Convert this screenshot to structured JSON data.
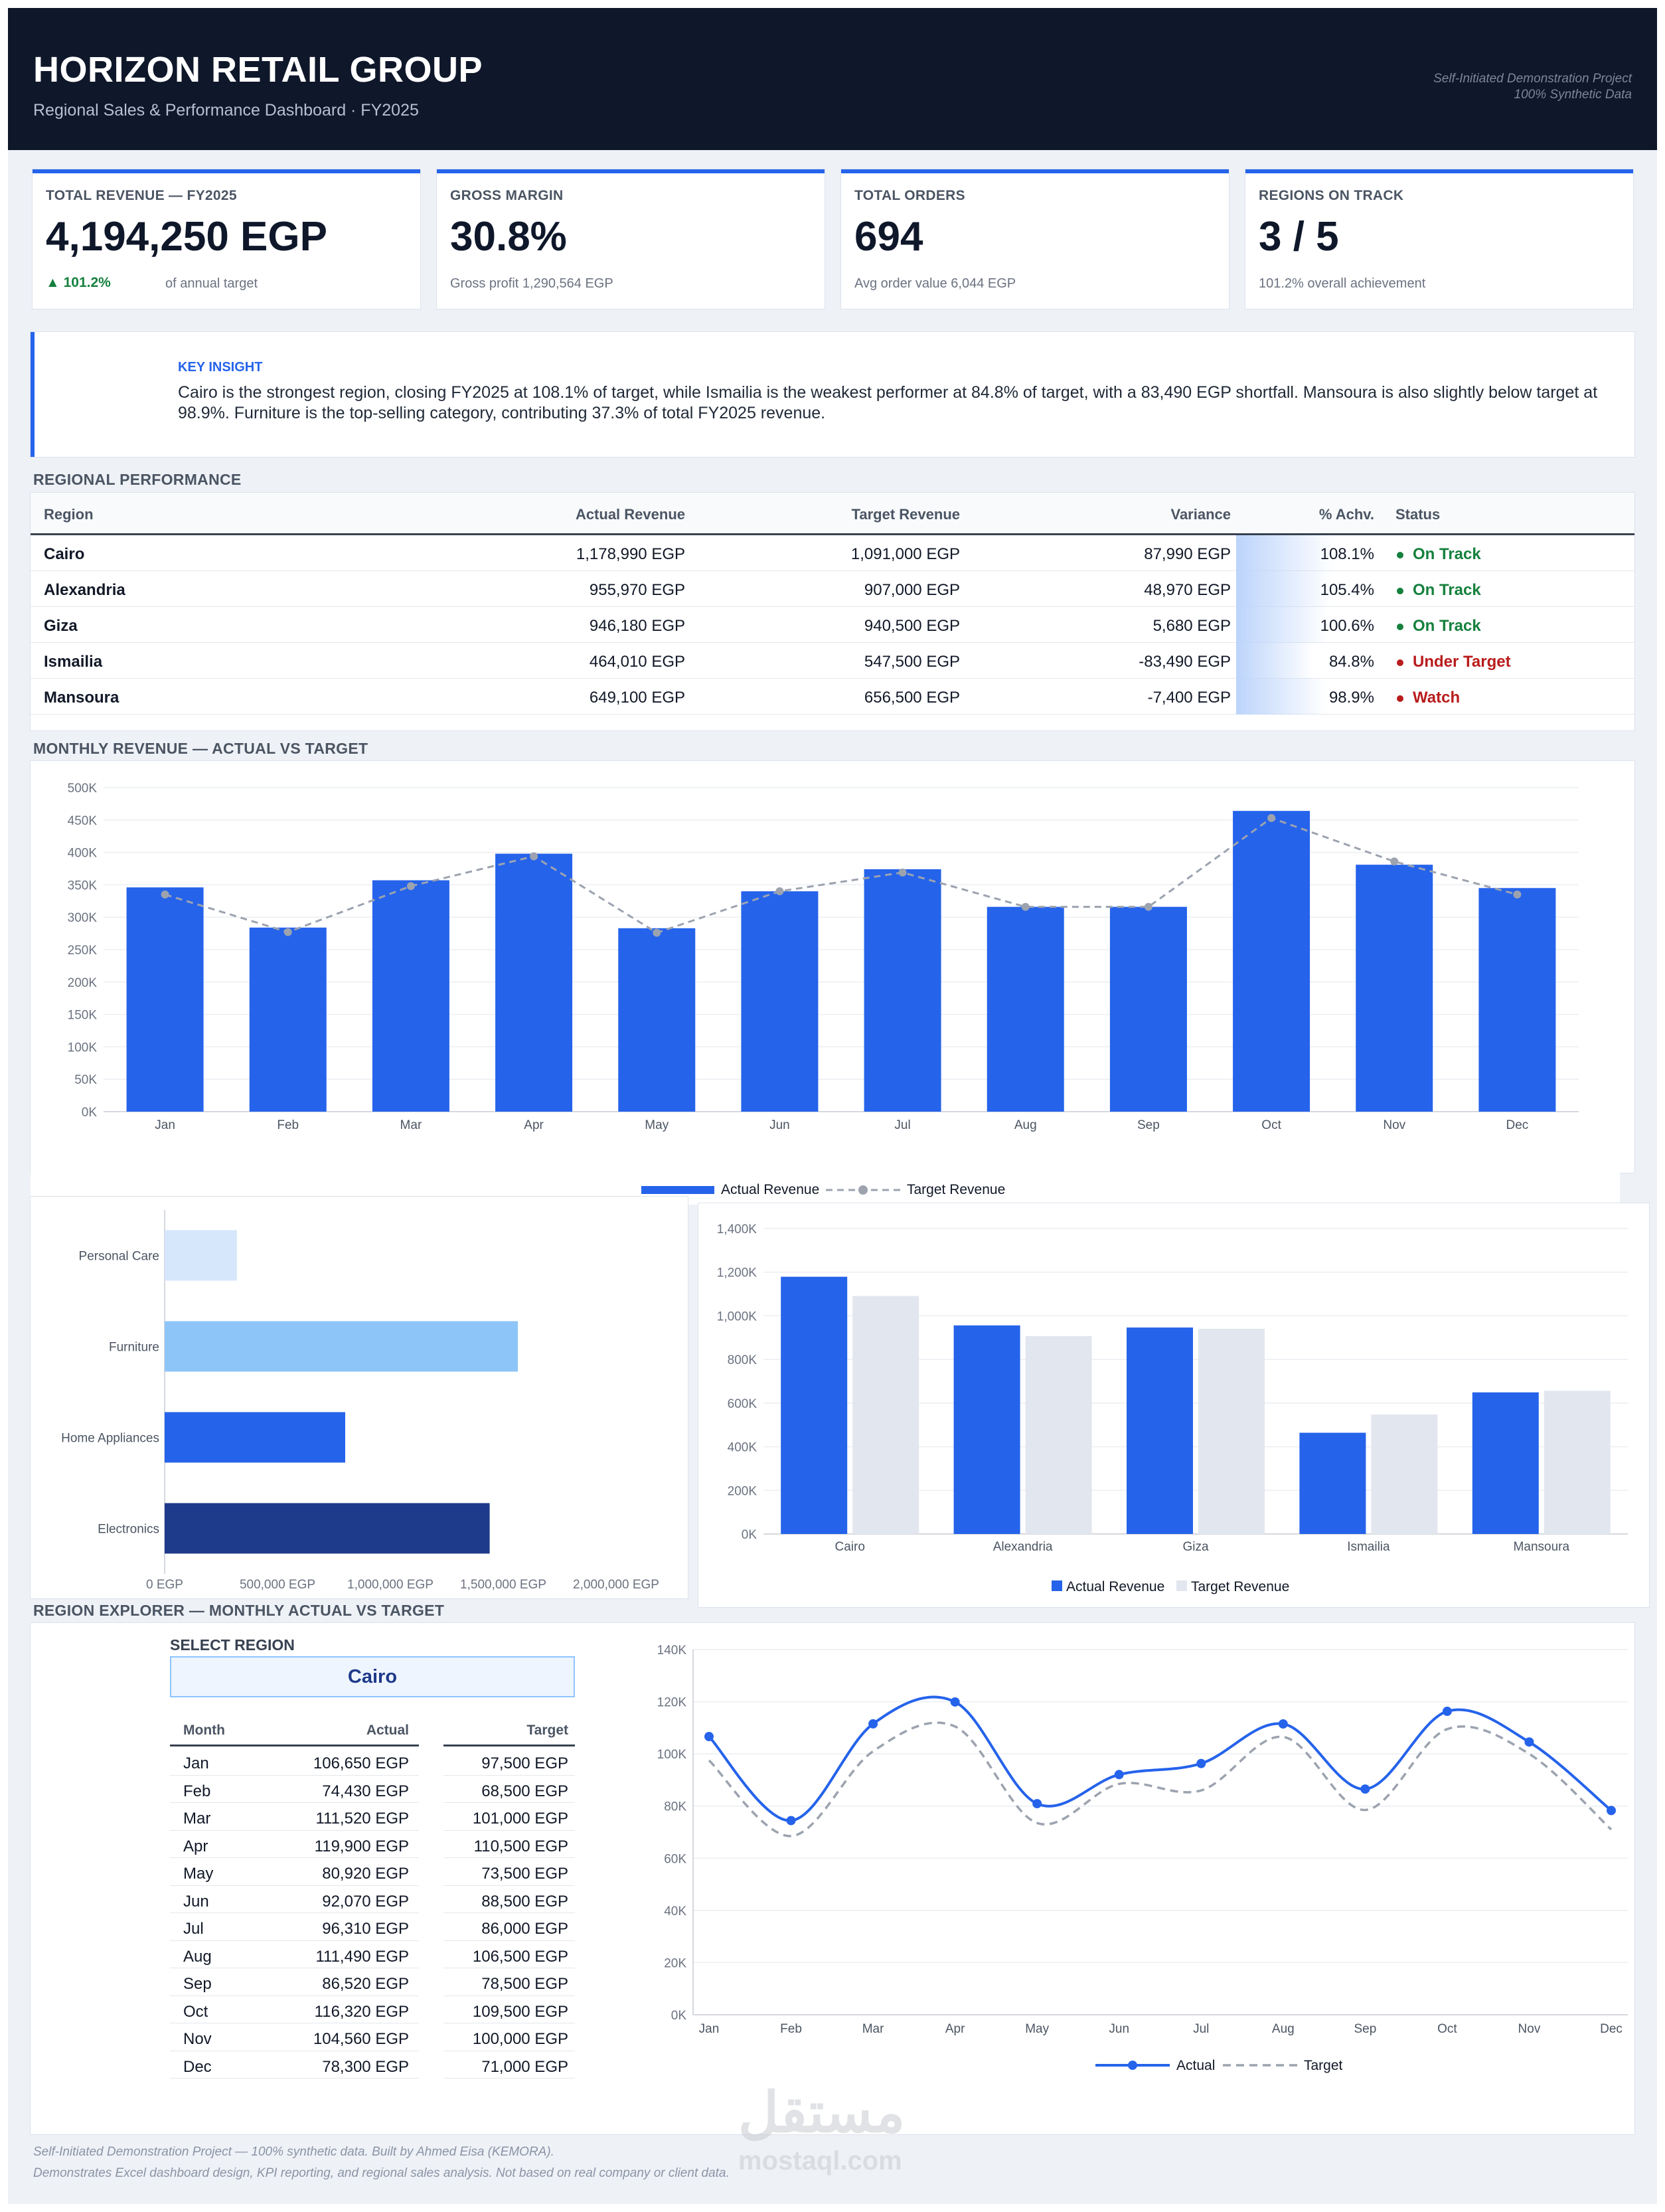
{
  "header": {
    "title": "HORIZON RETAIL GROUP",
    "subtitle": "Regional Sales & Performance Dashboard  ·  FY2025",
    "note_line1": "Self-Initiated Demonstration Project",
    "note_line2": "100% Synthetic Data"
  },
  "kpis": [
    {
      "label": "TOTAL REVENUE — FY2025",
      "value": "4,194,250 EGP",
      "delta": "▲ 101.2%",
      "sub": "of annual target"
    },
    {
      "label": "GROSS MARGIN",
      "value": "30.8%",
      "sub": "Gross profit 1,290,564 EGP"
    },
    {
      "label": "TOTAL ORDERS",
      "value": "694",
      "sub": "Avg order value 6,044 EGP"
    },
    {
      "label": "REGIONS ON TRACK",
      "value": "3 / 5",
      "sub": "101.2% overall achievement"
    }
  ],
  "insight": {
    "label": "KEY INSIGHT",
    "text": "Cairo is the strongest region, closing FY2025 at 108.1% of target, while Ismailia is the weakest performer at 84.8% of target, with a 83,490 EGP shortfall.  Mansoura is also slightly below target at 98.9%.  Furniture is the top-selling category, contributing 37.3% of total FY2025 revenue."
  },
  "regional": {
    "title": "REGIONAL PERFORMANCE",
    "headers": [
      "Region",
      "Actual Revenue",
      "Target Revenue",
      "Variance",
      "% Achv.",
      "Status"
    ],
    "rows": [
      {
        "region": "Cairo",
        "actual": "1,178,990 EGP",
        "target": "1,091,000 EGP",
        "variance": "87,990 EGP",
        "achv": "108.1%",
        "achv_value": 108.1,
        "status": "On Track",
        "status_color": "#15803d"
      },
      {
        "region": "Alexandria",
        "actual": "955,970 EGP",
        "target": "907,000 EGP",
        "variance": "48,970 EGP",
        "achv": "105.4%",
        "achv_value": 105.4,
        "status": "On Track",
        "status_color": "#15803d"
      },
      {
        "region": "Giza",
        "actual": "946,180 EGP",
        "target": "940,500 EGP",
        "variance": "5,680 EGP",
        "achv": "100.6%",
        "achv_value": 100.6,
        "status": "On Track",
        "status_color": "#15803d"
      },
      {
        "region": "Ismailia",
        "actual": "464,010 EGP",
        "target": "547,500 EGP",
        "variance": "-83,490 EGP",
        "achv": "84.8%",
        "achv_value": 84.8,
        "status": "Under Target",
        "status_color": "#b91c1c"
      },
      {
        "region": "Mansoura",
        "actual": "649,100 EGP",
        "target": "656,500 EGP",
        "variance": "-7,400 EGP",
        "achv": "98.9%",
        "achv_value": 98.9,
        "status": "Watch",
        "status_color": "#b91c1c"
      }
    ]
  },
  "monthly_title": "MONTHLY REVENUE — ACTUAL VS TARGET",
  "explorer": {
    "title": "REGION EXPLORER — MONTHLY ACTUAL VS TARGET",
    "select_label": "SELECT REGION",
    "selected": "Cairo",
    "headers": [
      "Month",
      "Actual",
      "Target"
    ],
    "rows": [
      [
        "Jan",
        "106,650 EGP",
        "97,500 EGP"
      ],
      [
        "Feb",
        "74,430 EGP",
        "68,500 EGP"
      ],
      [
        "Mar",
        "111,520 EGP",
        "101,000 EGP"
      ],
      [
        "Apr",
        "119,900 EGP",
        "110,500 EGP"
      ],
      [
        "May",
        "80,920 EGP",
        "73,500 EGP"
      ],
      [
        "Jun",
        "92,070 EGP",
        "88,500 EGP"
      ],
      [
        "Jul",
        "96,310 EGP",
        "86,000 EGP"
      ],
      [
        "Aug",
        "111,490 EGP",
        "106,500 EGP"
      ],
      [
        "Sep",
        "86,520 EGP",
        "78,500 EGP"
      ],
      [
        "Oct",
        "116,320 EGP",
        "109,500 EGP"
      ],
      [
        "Nov",
        "104,560 EGP",
        "100,000 EGP"
      ],
      [
        "Dec",
        "78,300 EGP",
        "71,000 EGP"
      ]
    ]
  },
  "footer": {
    "line1": "Self-Initiated Demonstration Project — 100% synthetic data. Built by Ahmed Eisa (KEMORA).",
    "line2": "Demonstrates Excel dashboard design, KPI reporting, and regional sales analysis. Not based on real company or client data."
  },
  "watermark": {
    "arabic": "مستقل",
    "latin": "mostaql.com"
  },
  "colors": {
    "accent": "#2563eb",
    "navy": "#0f172a",
    "target_gray": "#e2e6ee",
    "good": "#15803d",
    "bad": "#b91c1c"
  },
  "chart_data": [
    {
      "type": "bar",
      "id": "monthly",
      "categories": [
        "Jan",
        "Feb",
        "Mar",
        "Apr",
        "May",
        "Jun",
        "Jul",
        "Aug",
        "Sep",
        "Oct",
        "Nov",
        "Dec"
      ],
      "series": [
        {
          "name": "Actual Revenue",
          "kind": "bar",
          "values": [
            346000,
            284000,
            357000,
            398000,
            283000,
            340000,
            374000,
            316000,
            316000,
            464000,
            381000,
            345000
          ]
        },
        {
          "name": "Target Revenue",
          "kind": "line",
          "values": [
            335000,
            277000,
            348000,
            394000,
            276000,
            340000,
            369000,
            316000,
            316000,
            453000,
            386000,
            335000
          ]
        }
      ],
      "ylim": [
        0,
        500000
      ],
      "yticks": [
        "0K",
        "50K",
        "100K",
        "150K",
        "200K",
        "250K",
        "300K",
        "350K",
        "400K",
        "450K",
        "500K"
      ],
      "legend": "bottom",
      "grid": true
    },
    {
      "type": "bar",
      "id": "category",
      "orientation": "horizontal",
      "categories": [
        "Personal Care",
        "Furniture",
        "Home Appliances",
        "Electronics"
      ],
      "values": [
        320000,
        1565000,
        800000,
        1440000
      ],
      "bar_colors": [
        "#d6e6fb",
        "#8ec5f8",
        "#2563eb",
        "#1e3a8a"
      ],
      "xlim": [
        0,
        2000000
      ],
      "xticks": [
        "0 EGP",
        "500,000 EGP",
        "1,000,000 EGP",
        "1,500,000 EGP",
        "2,000,000 EGP"
      ],
      "grid": false
    },
    {
      "type": "bar",
      "id": "regional",
      "categories": [
        "Cairo",
        "Alexandria",
        "Giza",
        "Ismailia",
        "Mansoura"
      ],
      "series": [
        {
          "name": "Actual Revenue",
          "values": [
            1178990,
            955970,
            946180,
            464010,
            649100
          ]
        },
        {
          "name": "Target Revenue",
          "values": [
            1091000,
            907000,
            940500,
            547500,
            656500
          ]
        }
      ],
      "ylim": [
        0,
        1400000
      ],
      "yticks": [
        "0K",
        "200K",
        "400K",
        "600K",
        "800K",
        "1,000K",
        "1,200K",
        "1,400K"
      ],
      "legend": "bottom",
      "grid": true
    },
    {
      "type": "line",
      "id": "explorer",
      "categories": [
        "Jan",
        "Feb",
        "Mar",
        "Apr",
        "May",
        "Jun",
        "Jul",
        "Aug",
        "Sep",
        "Oct",
        "Nov",
        "Dec"
      ],
      "series": [
        {
          "name": "Actual",
          "values": [
            106650,
            74430,
            111520,
            119900,
            80920,
            92070,
            96310,
            111490,
            86520,
            116320,
            104560,
            78300
          ]
        },
        {
          "name": "Target",
          "values": [
            97500,
            68500,
            101000,
            110500,
            73500,
            88500,
            86000,
            106500,
            78500,
            109500,
            100000,
            71000
          ]
        }
      ],
      "ylim": [
        0,
        140000
      ],
      "yticks": [
        "0K",
        "20K",
        "40K",
        "60K",
        "80K",
        "100K",
        "120K",
        "140K"
      ],
      "legend": "bottom",
      "grid": true
    }
  ]
}
